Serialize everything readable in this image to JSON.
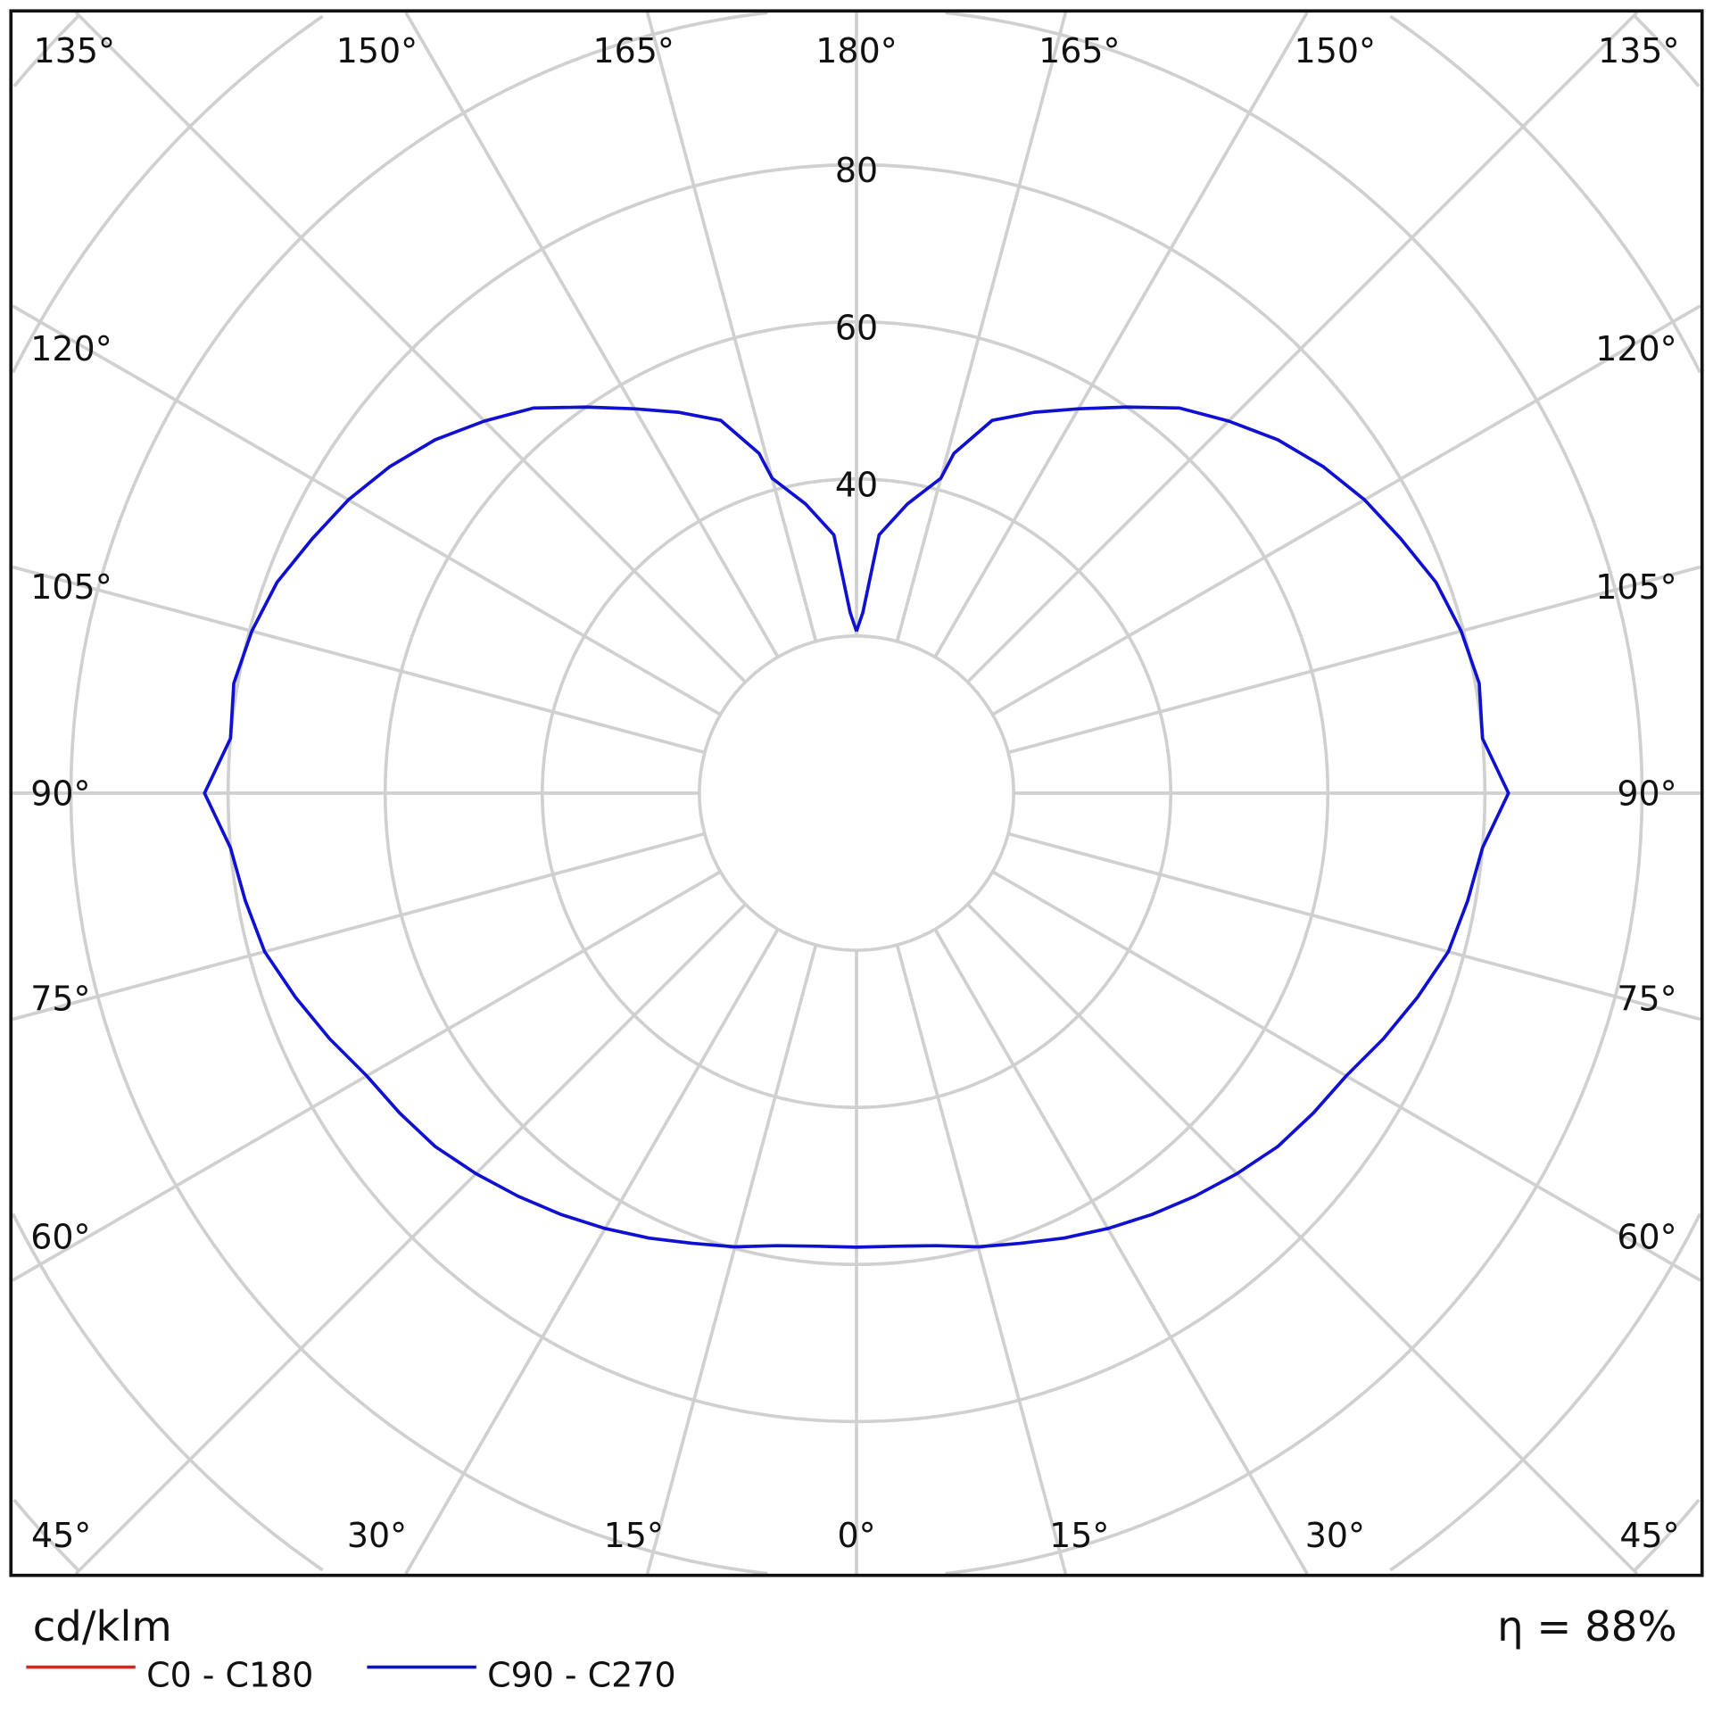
{
  "chart_data": {
    "type": "polar",
    "unit_label": "cd/klm",
    "efficiency_label": "η = 88%",
    "radial_ticks": [
      40,
      60,
      80
    ],
    "radial_rings": [
      20,
      40,
      60,
      80,
      100,
      120,
      140
    ],
    "angle_ticks_top": [
      "135°",
      "150°",
      "165°",
      "180°",
      "165°",
      "150°",
      "135°"
    ],
    "angle_ticks_sides": [
      "120°",
      "105°",
      "90°",
      "75°",
      "60°"
    ],
    "angle_ticks_bottom": [
      "45°",
      "30°",
      "15°",
      "0°",
      "15°",
      "30°",
      "45°"
    ],
    "grid": true,
    "legend_position": "bottom-left",
    "series": [
      {
        "name": "C0 - C180",
        "color": "#e02020",
        "gamma": [],
        "values": []
      },
      {
        "name": "C90 - C270",
        "color": "#1010d0",
        "gamma": [
          0,
          5,
          10,
          15,
          20,
          25,
          30,
          35,
          40,
          45,
          50,
          55,
          60,
          65,
          70,
          75,
          80,
          85,
          90,
          95,
          100,
          105,
          110,
          115,
          120,
          125,
          130,
          135,
          140,
          145,
          150,
          155,
          160,
          164,
          165,
          170,
          175,
          178,
          180
        ],
        "values": [
          57.8,
          57.9,
          58.5,
          59.8,
          61,
          62.5,
          64,
          65.5,
          67,
          68.5,
          70,
          71,
          72,
          74,
          76,
          78,
          79,
          80,
          83,
          80,
          80.5,
          79.7,
          78.5,
          76.5,
          74.7,
          72.5,
          70,
          67,
          64,
          60,
          56.5,
          53.5,
          50.5,
          45,
          41.5,
          37.4,
          33,
          23,
          20.6
        ]
      }
    ]
  }
}
